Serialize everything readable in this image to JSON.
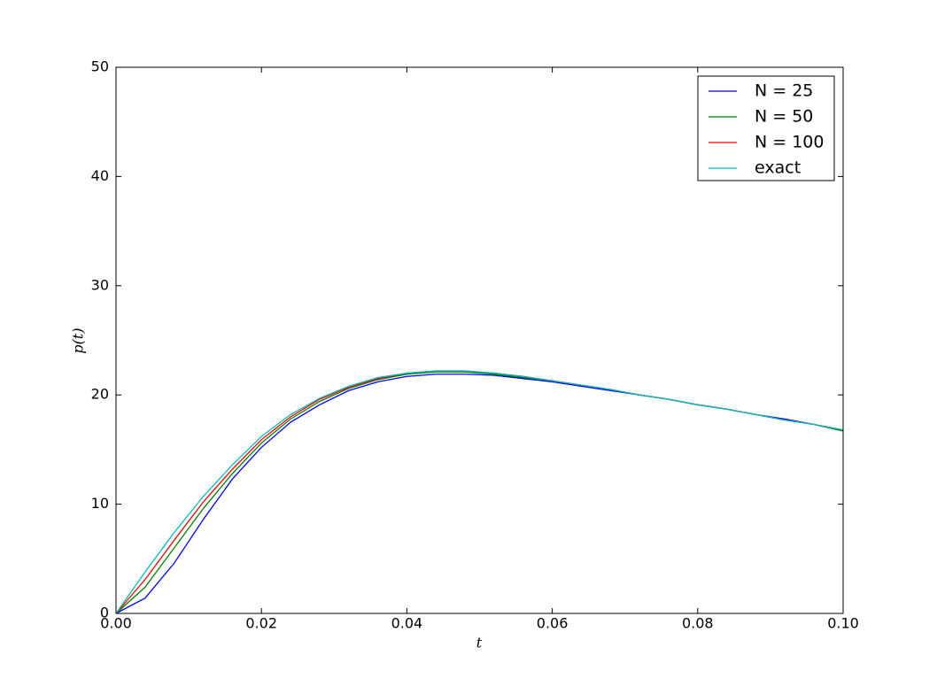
{
  "chart_data": {
    "type": "line",
    "x_label": "t",
    "y_label": "p(t)",
    "x": [
      0,
      0.004,
      0.008,
      0.012,
      0.016,
      0.02,
      0.024,
      0.028,
      0.032,
      0.036,
      0.04,
      0.044,
      0.048,
      0.052,
      0.056,
      0.06,
      0.064,
      0.068,
      0.072,
      0.076,
      0.08,
      0.084,
      0.088,
      0.092,
      0.096,
      0.1
    ],
    "series": [
      {
        "name": "N = 25",
        "color": "#0000ff",
        "values": [
          0,
          1.4,
          4.6,
          8.6,
          12.3,
          15.2,
          17.5,
          19.1,
          20.4,
          21.2,
          21.7,
          21.9,
          21.9,
          21.8,
          21.5,
          21.2,
          20.8,
          20.4,
          20.0,
          19.6,
          19.1,
          18.7,
          18.2,
          17.8,
          17.3,
          16.7
        ]
      },
      {
        "name": "N = 50",
        "color": "#008000",
        "values": [
          0,
          2.4,
          6.0,
          9.6,
          12.8,
          15.6,
          17.8,
          19.4,
          20.6,
          21.4,
          21.9,
          22.1,
          22.1,
          21.9,
          21.6,
          21.3,
          20.9,
          20.5,
          20.0,
          19.6,
          19.1,
          18.7,
          18.2,
          17.7,
          17.3,
          16.7
        ]
      },
      {
        "name": "N = 100",
        "color": "#ff0000",
        "values": [
          0,
          3.1,
          6.7,
          10.2,
          13.2,
          15.9,
          18.0,
          19.6,
          20.7,
          21.5,
          22.0,
          22.2,
          22.2,
          22.0,
          21.7,
          21.3,
          20.9,
          20.5,
          20.0,
          19.6,
          19.1,
          18.7,
          18.2,
          17.7,
          17.3,
          16.8
        ]
      },
      {
        "name": "exact",
        "color": "#00bfbf",
        "values": [
          0,
          3.8,
          7.4,
          10.7,
          13.6,
          16.2,
          18.2,
          19.7,
          20.8,
          21.6,
          22.0,
          22.2,
          22.2,
          22.0,
          21.7,
          21.3,
          20.9,
          20.5,
          20.0,
          19.6,
          19.1,
          18.7,
          18.2,
          17.7,
          17.3,
          16.8
        ]
      }
    ],
    "xlim": [
      0,
      0.1
    ],
    "xticks": [
      {
        "value": 0,
        "label": "0.00"
      },
      {
        "value": 0.02,
        "label": "0.02"
      },
      {
        "value": 0.04,
        "label": "0.04"
      },
      {
        "value": 0.06,
        "label": "0.06"
      },
      {
        "value": 0.08,
        "label": "0.08"
      },
      {
        "value": 0.1,
        "label": "0.10"
      }
    ],
    "ylim": [
      0,
      50
    ],
    "yticks": [
      0,
      10,
      20,
      30,
      40,
      50
    ],
    "grid": false,
    "legend": "upper right"
  }
}
